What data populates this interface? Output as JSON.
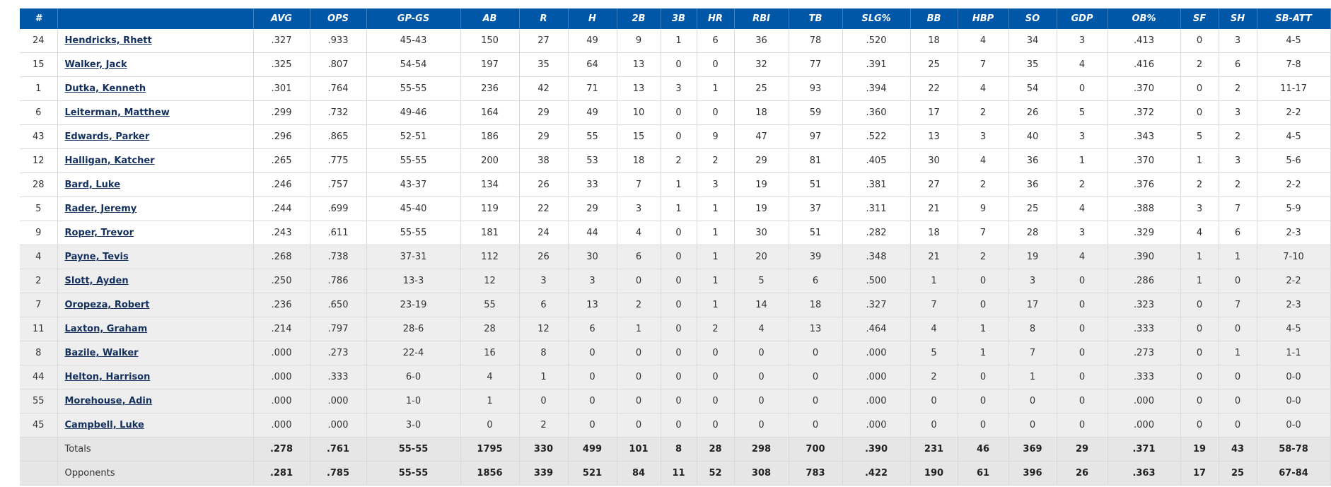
{
  "colors": {
    "header_bg": "#0057a8",
    "header_text": "#ffffff",
    "link": "#14305c",
    "row_shaded": "#eeeeee",
    "summary_bg": "#e6e6e6"
  },
  "table": {
    "headers": [
      "#",
      "",
      "AVG",
      "OPS",
      "GP-GS",
      "AB",
      "R",
      "H",
      "2B",
      "3B",
      "HR",
      "RBI",
      "TB",
      "SLG%",
      "BB",
      "HBP",
      "SO",
      "GDP",
      "OB%",
      "SF",
      "SH",
      "SB-ATT"
    ],
    "rows": [
      [
        "24",
        "Hendricks, Rhett",
        ".327",
        ".933",
        "45-43",
        "150",
        "27",
        "49",
        "9",
        "1",
        "6",
        "36",
        "78",
        ".520",
        "18",
        "4",
        "34",
        "3",
        ".413",
        "0",
        "3",
        "4-5"
      ],
      [
        "15",
        "Walker, Jack",
        ".325",
        ".807",
        "54-54",
        "197",
        "35",
        "64",
        "13",
        "0",
        "0",
        "32",
        "77",
        ".391",
        "25",
        "7",
        "35",
        "4",
        ".416",
        "2",
        "6",
        "7-8"
      ],
      [
        "1",
        "Dutka, Kenneth",
        ".301",
        ".764",
        "55-55",
        "236",
        "42",
        "71",
        "13",
        "3",
        "1",
        "25",
        "93",
        ".394",
        "22",
        "4",
        "54",
        "0",
        ".370",
        "0",
        "2",
        "11-17"
      ],
      [
        "6",
        "Leiterman, Matthew",
        ".299",
        ".732",
        "49-46",
        "164",
        "29",
        "49",
        "10",
        "0",
        "0",
        "18",
        "59",
        ".360",
        "17",
        "2",
        "26",
        "5",
        ".372",
        "0",
        "3",
        "2-2"
      ],
      [
        "43",
        "Edwards, Parker",
        ".296",
        ".865",
        "52-51",
        "186",
        "29",
        "55",
        "15",
        "0",
        "9",
        "47",
        "97",
        ".522",
        "13",
        "3",
        "40",
        "3",
        ".343",
        "5",
        "2",
        "4-5"
      ],
      [
        "12",
        "Halligan, Katcher",
        ".265",
        ".775",
        "55-55",
        "200",
        "38",
        "53",
        "18",
        "2",
        "2",
        "29",
        "81",
        ".405",
        "30",
        "4",
        "36",
        "1",
        ".370",
        "1",
        "3",
        "5-6"
      ],
      [
        "28",
        "Bard, Luke",
        ".246",
        ".757",
        "43-37",
        "134",
        "26",
        "33",
        "7",
        "1",
        "3",
        "19",
        "51",
        ".381",
        "27",
        "2",
        "36",
        "2",
        ".376",
        "2",
        "2",
        "2-2"
      ],
      [
        "5",
        "Rader, Jeremy",
        ".244",
        ".699",
        "45-40",
        "119",
        "22",
        "29",
        "3",
        "1",
        "1",
        "19",
        "37",
        ".311",
        "21",
        "9",
        "25",
        "4",
        ".388",
        "3",
        "7",
        "5-9"
      ],
      [
        "9",
        "Roper, Trevor",
        ".243",
        ".611",
        "55-55",
        "181",
        "24",
        "44",
        "4",
        "0",
        "1",
        "30",
        "51",
        ".282",
        "18",
        "7",
        "28",
        "3",
        ".329",
        "4",
        "6",
        "2-3"
      ],
      [
        "4",
        "Payne, Tevis",
        ".268",
        ".738",
        "37-31",
        "112",
        "26",
        "30",
        "6",
        "0",
        "1",
        "20",
        "39",
        ".348",
        "21",
        "2",
        "19",
        "4",
        ".390",
        "1",
        "1",
        "7-10"
      ],
      [
        "2",
        "Slott, Ayden",
        ".250",
        ".786",
        "13-3",
        "12",
        "3",
        "3",
        "0",
        "0",
        "1",
        "5",
        "6",
        ".500",
        "1",
        "0",
        "3",
        "0",
        ".286",
        "1",
        "0",
        "2-2"
      ],
      [
        "7",
        "Oropeza, Robert",
        ".236",
        ".650",
        "23-19",
        "55",
        "6",
        "13",
        "2",
        "0",
        "1",
        "14",
        "18",
        ".327",
        "7",
        "0",
        "17",
        "0",
        ".323",
        "0",
        "7",
        "2-3"
      ],
      [
        "11",
        "Laxton, Graham",
        ".214",
        ".797",
        "28-6",
        "28",
        "12",
        "6",
        "1",
        "0",
        "2",
        "4",
        "13",
        ".464",
        "4",
        "1",
        "8",
        "0",
        ".333",
        "0",
        "0",
        "4-5"
      ],
      [
        "8",
        "Bazile, Walker",
        ".000",
        ".273",
        "22-4",
        "16",
        "8",
        "0",
        "0",
        "0",
        "0",
        "0",
        "0",
        ".000",
        "5",
        "1",
        "7",
        "0",
        ".273",
        "0",
        "1",
        "1-1"
      ],
      [
        "44",
        "Helton, Harrison",
        ".000",
        ".333",
        "6-0",
        "4",
        "1",
        "0",
        "0",
        "0",
        "0",
        "0",
        "0",
        ".000",
        "2",
        "0",
        "1",
        "0",
        ".333",
        "0",
        "0",
        "0-0"
      ],
      [
        "55",
        "Morehouse, Adin",
        ".000",
        ".000",
        "1-0",
        "1",
        "0",
        "0",
        "0",
        "0",
        "0",
        "0",
        "0",
        ".000",
        "0",
        "0",
        "0",
        "0",
        ".000",
        "0",
        "0",
        "0-0"
      ],
      [
        "45",
        "Campbell, Luke",
        ".000",
        ".000",
        "3-0",
        "0",
        "2",
        "0",
        "0",
        "0",
        "0",
        "0",
        "0",
        ".000",
        "0",
        "0",
        "0",
        "0",
        ".000",
        "0",
        "0",
        "0-0"
      ]
    ],
    "shaded_from_row": 9,
    "summary_rows": [
      [
        "",
        "Totals",
        ".278",
        ".761",
        "55-55",
        "1795",
        "330",
        "499",
        "101",
        "8",
        "28",
        "298",
        "700",
        ".390",
        "231",
        "46",
        "369",
        "29",
        ".371",
        "19",
        "43",
        "58-78"
      ],
      [
        "",
        "Opponents",
        ".281",
        ".785",
        "55-55",
        "1856",
        "339",
        "521",
        "84",
        "11",
        "52",
        "308",
        "783",
        ".422",
        "190",
        "61",
        "396",
        "26",
        ".363",
        "17",
        "25",
        "67-84"
      ]
    ]
  }
}
